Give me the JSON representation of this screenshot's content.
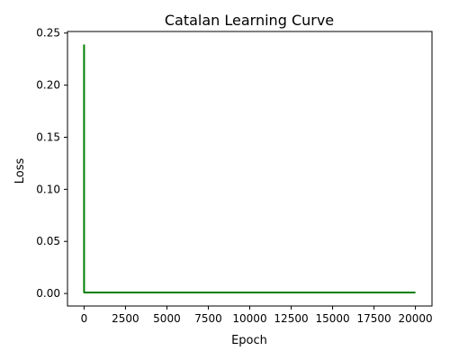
{
  "chart_data": {
    "type": "line",
    "title": "Catalan Learning Curve",
    "xlabel": "Epoch",
    "ylabel": "Loss",
    "xlim": [
      -1000,
      21000
    ],
    "ylim": [
      -0.012,
      0.2515
    ],
    "xticks": [
      0,
      2500,
      5000,
      7500,
      10000,
      12500,
      15000,
      17500,
      20000
    ],
    "xtick_labels": [
      "0",
      "2500",
      "5000",
      "7500",
      "10000",
      "12500",
      "15000",
      "17500",
      "20000"
    ],
    "yticks": [
      0.0,
      0.05,
      0.1,
      0.15,
      0.2,
      0.25
    ],
    "ytick_labels": [
      "0.00",
      "0.05",
      "0.10",
      "0.15",
      "0.20",
      "0.25"
    ],
    "grid": false,
    "series": [
      {
        "color": "#008000",
        "x": [
          0,
          1,
          50,
          20000
        ],
        "y": [
          0.239,
          0.001,
          0.001,
          0.001
        ]
      }
    ]
  }
}
